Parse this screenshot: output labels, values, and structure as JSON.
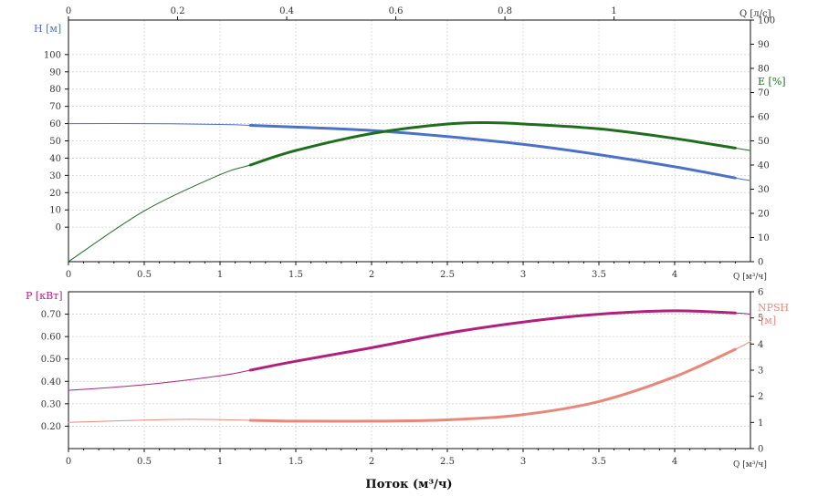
{
  "chart_data": [
    {
      "type": "line",
      "panel": "top",
      "top_axis": {
        "label": "Q [л/с]",
        "ticks": [
          "0",
          "0.2",
          "0.4",
          "0.6",
          "0.8",
          "1"
        ],
        "ticks_values": [
          0,
          0.2,
          0.4,
          0.6,
          0.8,
          1.0
        ]
      },
      "x_axis": {
        "label": "Q [м³/ч]",
        "ticks": [
          "0",
          "0.5",
          "1",
          "1.5",
          "2",
          "2.5",
          "3",
          "3.5",
          "4"
        ],
        "range": [
          0,
          4.5
        ]
      },
      "left_axis": {
        "label": "H [м]",
        "ticks": [
          "0",
          "10",
          "20",
          "30",
          "40",
          "50",
          "60",
          "70",
          "80",
          "90",
          "100"
        ],
        "range": [
          -20,
          120
        ]
      },
      "right_axis": {
        "label": "E [%]",
        "ticks": [
          "0",
          "10",
          "20",
          "30",
          "40",
          "50",
          "60",
          "70",
          "80",
          "90",
          "100"
        ],
        "range": [
          0,
          100
        ]
      },
      "grid": true,
      "series": [
        {
          "axis": "left",
          "color": "#4a72c8",
          "x": [
            0,
            0.5,
            1.0,
            1.2,
            1.5,
            2.0,
            2.5,
            3.0,
            3.5,
            4.0,
            4.4,
            4.5
          ],
          "y": [
            60,
            60,
            59.5,
            59,
            58,
            56,
            52.5,
            48,
            42,
            35,
            28.5,
            27
          ],
          "op_range": [
            1.2,
            4.4
          ]
        },
        {
          "axis": "right",
          "color": "#1e6e1e",
          "x": [
            0,
            0.5,
            1.0,
            1.2,
            1.5,
            2.0,
            2.5,
            2.8,
            3.0,
            3.5,
            4.0,
            4.4,
            4.5
          ],
          "y": [
            0,
            21,
            36,
            40,
            46,
            53,
            57,
            57.5,
            57,
            55,
            51,
            47,
            46
          ],
          "op_range": [
            1.2,
            4.4
          ]
        }
      ]
    },
    {
      "type": "line",
      "panel": "bottom",
      "x_axis": {
        "label": "Q [м³/ч]",
        "ticks": [
          "0",
          "0.5",
          "1",
          "1.5",
          "2",
          "2.5",
          "3",
          "3.5",
          "4"
        ],
        "range": [
          0,
          4.5
        ]
      },
      "left_axis": {
        "label": "P [кВт]",
        "ticks": [
          "0.20",
          "0.30",
          "0.40",
          "0.50",
          "0.60",
          "0.70"
        ],
        "ticks_values": [
          0.2,
          0.3,
          0.4,
          0.5,
          0.6,
          0.7
        ],
        "range": [
          0.1,
          0.8
        ]
      },
      "right_axis": {
        "label_line1": "NPSH",
        "label_line2": "[м]",
        "ticks": [
          "0",
          "1",
          "2",
          "3",
          "4",
          "5",
          "6"
        ],
        "range": [
          0,
          6
        ]
      },
      "xlabel": "Поток (м³/ч)",
      "grid": true,
      "series": [
        {
          "axis": "left",
          "color": "#b0207d",
          "x": [
            0,
            0.5,
            1.0,
            1.2,
            1.5,
            2.0,
            2.5,
            3.0,
            3.5,
            4.0,
            4.4,
            4.5
          ],
          "y": [
            0.36,
            0.385,
            0.425,
            0.45,
            0.49,
            0.55,
            0.615,
            0.665,
            0.7,
            0.715,
            0.705,
            0.7
          ],
          "op_range": [
            1.2,
            4.4
          ]
        },
        {
          "axis": "right",
          "color": "#e8887a",
          "x": [
            0,
            0.5,
            0.8,
            1.0,
            1.2,
            1.5,
            2.0,
            2.5,
            3.0,
            3.5,
            4.0,
            4.4,
            4.5
          ],
          "y": [
            1.0,
            1.09,
            1.12,
            1.11,
            1.08,
            1.05,
            1.05,
            1.1,
            1.3,
            1.8,
            2.75,
            3.8,
            4.1
          ],
          "op_range": [
            1.2,
            4.4
          ]
        }
      ]
    }
  ]
}
